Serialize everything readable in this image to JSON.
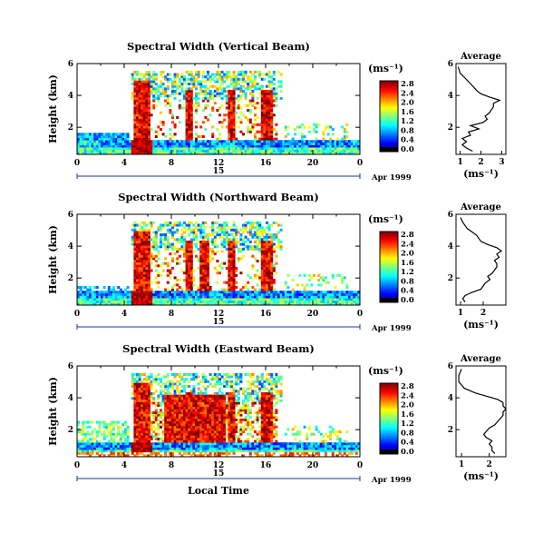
{
  "chart_data": [
    {
      "type": "heatmap",
      "title": "Spectral Width (Vertical Beam)",
      "ylabel": "Height (km)",
      "xlim": [
        0,
        24
      ],
      "ylim": [
        0.3,
        6
      ],
      "x_ticks": [
        "0",
        "4",
        "8",
        "12",
        "16",
        "20",
        "0"
      ],
      "y_ticks": [
        "2",
        "4",
        "6"
      ],
      "day_label": "15",
      "date_label": "Apr 1999",
      "colorbar": {
        "unit": "(ms⁻¹)",
        "ticks": [
          "0.0",
          "0.4",
          "0.8",
          "1.2",
          "1.6",
          "2.0",
          "2.4",
          "2.8"
        ],
        "range": [
          0,
          2.8
        ]
      },
      "average": {
        "title": "Average",
        "xlabel": "(ms⁻¹)",
        "x_ticks": [
          "1",
          "2",
          "3"
        ],
        "xlim": [
          0.8,
          3.2
        ],
        "y_ticks": [
          "2",
          "4",
          "6"
        ],
        "profile": [
          [
            1.6,
            0.5
          ],
          [
            1.3,
            0.7
          ],
          [
            1.1,
            0.9
          ],
          [
            1.3,
            1.1
          ],
          [
            1.1,
            1.3
          ],
          [
            1.5,
            1.5
          ],
          [
            1.4,
            1.7
          ],
          [
            1.9,
            1.9
          ],
          [
            1.5,
            2.1
          ],
          [
            2.1,
            2.3
          ],
          [
            2.3,
            2.5
          ],
          [
            2.2,
            2.7
          ],
          [
            2.4,
            2.9
          ],
          [
            2.5,
            3.1
          ],
          [
            2.6,
            3.3
          ],
          [
            2.6,
            3.5
          ],
          [
            2.9,
            3.7
          ],
          [
            2.4,
            3.9
          ],
          [
            2.0,
            4.1
          ],
          [
            1.8,
            4.3
          ],
          [
            1.6,
            4.6
          ],
          [
            1.3,
            5.0
          ],
          [
            1.0,
            5.4
          ],
          [
            0.9,
            5.8
          ]
        ]
      }
    },
    {
      "type": "heatmap",
      "title": "Spectral Width (Northward Beam)",
      "ylabel": "Height (km)",
      "xlim": [
        0,
        24
      ],
      "ylim": [
        0.3,
        6
      ],
      "x_ticks": [
        "0",
        "4",
        "8",
        "12",
        "16",
        "20",
        "0"
      ],
      "y_ticks": [
        "2",
        "4",
        "6"
      ],
      "day_label": "15",
      "date_label": "Apr 1999",
      "colorbar": {
        "unit": "(ms⁻¹)",
        "ticks": [
          "0.0",
          "0.4",
          "0.8",
          "1.2",
          "1.6",
          "2.0",
          "2.4",
          "2.8"
        ],
        "range": [
          0,
          2.8
        ]
      },
      "average": {
        "title": "Average",
        "xlabel": "(ms⁻¹)",
        "x_ticks": [
          "1",
          "2"
        ],
        "xlim": [
          0.8,
          3.0
        ],
        "y_ticks": [
          "2",
          "4",
          "6"
        ],
        "profile": [
          [
            1.2,
            0.5
          ],
          [
            1.1,
            0.7
          ],
          [
            1.2,
            0.9
          ],
          [
            1.5,
            1.1
          ],
          [
            1.9,
            1.3
          ],
          [
            2.0,
            1.5
          ],
          [
            2.1,
            1.7
          ],
          [
            2.3,
            1.9
          ],
          [
            2.2,
            2.1
          ],
          [
            2.4,
            2.3
          ],
          [
            2.5,
            2.5
          ],
          [
            2.6,
            2.7
          ],
          [
            2.6,
            2.9
          ],
          [
            2.5,
            3.1
          ],
          [
            2.7,
            3.3
          ],
          [
            2.6,
            3.5
          ],
          [
            2.8,
            3.7
          ],
          [
            2.6,
            3.9
          ],
          [
            2.2,
            4.1
          ],
          [
            1.9,
            4.3
          ],
          [
            1.7,
            4.7
          ],
          [
            1.3,
            5.1
          ],
          [
            1.1,
            5.5
          ],
          [
            1.0,
            5.8
          ]
        ]
      }
    },
    {
      "type": "heatmap",
      "title": "Spectral Width (Eastward Beam)",
      "ylabel": "Height (km)",
      "xlabel": "Local Time",
      "xlim": [
        0,
        24
      ],
      "ylim": [
        0.3,
        6
      ],
      "x_ticks": [
        "0",
        "4",
        "8",
        "12",
        "16",
        "20",
        "0"
      ],
      "y_ticks": [
        "2",
        "4",
        "6"
      ],
      "day_label": "15",
      "date_label": "Apr 1999",
      "colorbar": {
        "unit": "(ms⁻¹)",
        "ticks": [
          "0.0",
          "0.4",
          "0.8",
          "1.2",
          "1.6",
          "2.0",
          "2.4",
          "2.8"
        ],
        "range": [
          0,
          2.8
        ]
      },
      "average": {
        "title": "Average",
        "xlabel": "(ms⁻¹)",
        "x_ticks": [
          "1",
          "2"
        ],
        "xlim": [
          0.8,
          2.6
        ],
        "y_ticks": [
          "2",
          "4",
          "6"
        ],
        "profile": [
          [
            2.2,
            0.5
          ],
          [
            2.1,
            0.7
          ],
          [
            2.1,
            0.9
          ],
          [
            2.0,
            1.1
          ],
          [
            2.1,
            1.3
          ],
          [
            1.9,
            1.5
          ],
          [
            1.8,
            1.7
          ],
          [
            1.9,
            1.9
          ],
          [
            2.0,
            2.1
          ],
          [
            2.2,
            2.3
          ],
          [
            2.3,
            2.5
          ],
          [
            2.4,
            2.7
          ],
          [
            2.5,
            2.9
          ],
          [
            2.5,
            3.1
          ],
          [
            2.6,
            3.3
          ],
          [
            2.5,
            3.5
          ],
          [
            2.5,
            3.7
          ],
          [
            2.3,
            3.9
          ],
          [
            1.9,
            4.1
          ],
          [
            1.5,
            4.3
          ],
          [
            1.1,
            4.6
          ],
          [
            0.9,
            5.0
          ],
          [
            0.9,
            5.4
          ],
          [
            1.0,
            5.8
          ]
        ]
      }
    }
  ]
}
